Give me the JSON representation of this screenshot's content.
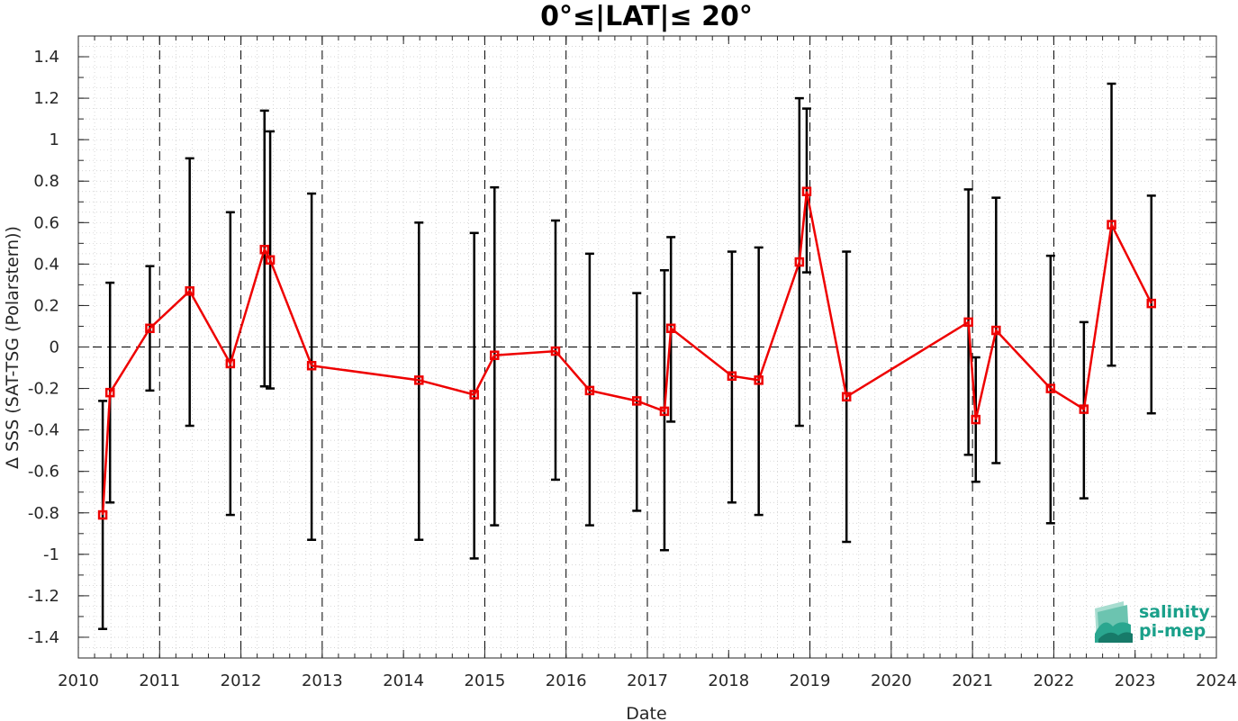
{
  "chart_data": {
    "type": "line",
    "title": "0°≤|LAT|≤ 20°",
    "xlabel": "Date",
    "ylabel": "Δ SSS (SAT-TSG (Polarstern))",
    "xlim": [
      2010,
      2024
    ],
    "ylim": [
      -1.5,
      1.5
    ],
    "x_ticks": [
      2010,
      2011,
      2012,
      2013,
      2014,
      2015,
      2016,
      2017,
      2018,
      2019,
      2020,
      2021,
      2022,
      2023,
      2024
    ],
    "x_tick_labels": [
      "2010",
      "2011",
      "2012",
      "2013",
      "2014",
      "2015",
      "2016",
      "2017",
      "2018",
      "2019",
      "2020",
      "2021",
      "2022",
      "2023",
      "2024"
    ],
    "y_ticks": [
      -1.4,
      -1.2,
      -1,
      -0.8,
      -0.6,
      -0.4,
      -0.2,
      0,
      0.2,
      0.4,
      0.6,
      0.8,
      1,
      1.2,
      1.4
    ],
    "y_tick_labels": [
      "-1.4",
      "-1.2",
      "-1",
      "-0.8",
      "-0.6",
      "-0.4",
      "-0.2",
      "0",
      "0.2",
      "0.4",
      "0.6",
      "0.8",
      "1",
      "1.2",
      "1.4"
    ],
    "year_dividers": [
      2011,
      2012,
      2013,
      2015,
      2016,
      2017,
      2019,
      2020,
      2021,
      2022
    ],
    "zero_line": 0,
    "grid": "minor dotted",
    "colors": {
      "line": "#ee0000",
      "marker": "#ee0000",
      "errorbar": "#000000",
      "logo": "#1aa08a"
    },
    "series": [
      {
        "points": [
          {
            "x": 2010.3,
            "y": -0.81,
            "lo": -1.36,
            "hi": -0.26
          },
          {
            "x": 2010.39,
            "y": -0.22,
            "lo": -0.75,
            "hi": 0.31
          },
          {
            "x": 2010.88,
            "y": 0.09,
            "lo": -0.21,
            "hi": 0.39
          },
          {
            "x": 2011.37,
            "y": 0.27,
            "lo": -0.38,
            "hi": 0.91
          },
          {
            "x": 2011.87,
            "y": -0.08,
            "lo": -0.81,
            "hi": 0.65
          },
          {
            "x": 2012.29,
            "y": 0.47,
            "lo": -0.19,
            "hi": 1.14
          },
          {
            "x": 2012.36,
            "y": 0.42,
            "lo": -0.2,
            "hi": 1.04
          },
          {
            "x": 2012.87,
            "y": -0.09,
            "lo": -0.93,
            "hi": 0.74
          },
          {
            "x": 2014.19,
            "y": -0.16,
            "lo": -0.93,
            "hi": 0.6
          },
          {
            "x": 2014.87,
            "y": -0.23,
            "lo": -1.02,
            "hi": 0.55
          },
          {
            "x": 2015.12,
            "y": -0.04,
            "lo": -0.86,
            "hi": 0.77
          },
          {
            "x": 2015.87,
            "y": -0.02,
            "lo": -0.64,
            "hi": 0.61
          },
          {
            "x": 2016.29,
            "y": -0.21,
            "lo": -0.86,
            "hi": 0.45
          },
          {
            "x": 2016.87,
            "y": -0.26,
            "lo": -0.79,
            "hi": 0.26
          },
          {
            "x": 2017.21,
            "y": -0.31,
            "lo": -0.98,
            "hi": 0.37
          },
          {
            "x": 2017.29,
            "y": 0.09,
            "lo": -0.36,
            "hi": 0.53
          },
          {
            "x": 2018.04,
            "y": -0.14,
            "lo": -0.75,
            "hi": 0.46
          },
          {
            "x": 2018.37,
            "y": -0.16,
            "lo": -0.81,
            "hi": 0.48
          },
          {
            "x": 2018.87,
            "y": 0.41,
            "lo": -0.38,
            "hi": 1.2
          },
          {
            "x": 2018.96,
            "y": 0.75,
            "lo": 0.36,
            "hi": 1.15
          },
          {
            "x": 2019.45,
            "y": -0.24,
            "lo": -0.94,
            "hi": 0.46
          },
          {
            "x": 2020.95,
            "y": 0.12,
            "lo": -0.52,
            "hi": 0.76
          },
          {
            "x": 2021.04,
            "y": -0.35,
            "lo": -0.65,
            "hi": -0.05
          },
          {
            "x": 2021.29,
            "y": 0.08,
            "lo": -0.56,
            "hi": 0.72
          },
          {
            "x": 2021.96,
            "y": -0.2,
            "lo": -0.85,
            "hi": 0.44
          },
          {
            "x": 2022.37,
            "y": -0.3,
            "lo": -0.73,
            "hi": 0.12
          },
          {
            "x": 2022.71,
            "y": 0.59,
            "lo": -0.09,
            "hi": 1.27
          },
          {
            "x": 2023.2,
            "y": 0.21,
            "lo": -0.32,
            "hi": 0.73
          }
        ]
      }
    ]
  },
  "logo": {
    "line1": "salinity",
    "line2": "pi-mep",
    "icon": "salinity-wave-icon"
  }
}
